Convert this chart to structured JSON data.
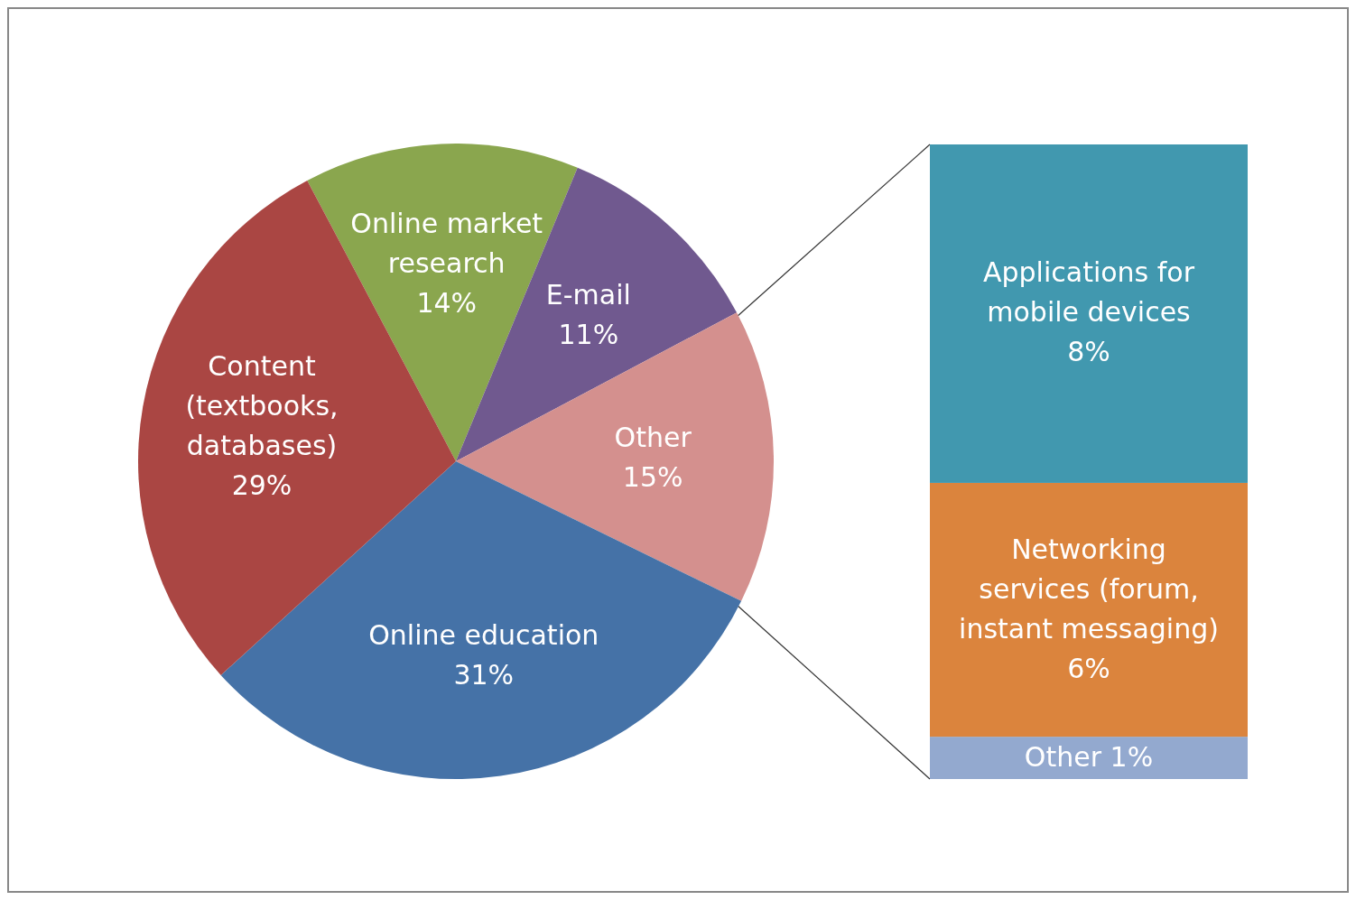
{
  "chart_data": [
    {
      "type": "pie",
      "categories": [
        "Online market research",
        "E-mail",
        "Other",
        "Online education",
        "Content (textbooks, databases)"
      ],
      "values": [
        14,
        11,
        15,
        31,
        29
      ],
      "colors": [
        "#8aa64e",
        "#70598f",
        "#d4908e",
        "#4572a7",
        "#aa4643"
      ],
      "value_labels": [
        "14%",
        "11%",
        "15%",
        "31%",
        "29%"
      ]
    },
    {
      "type": "bar",
      "stacked": true,
      "categories": [
        null
      ],
      "series": [
        {
          "name": "Other",
          "color": "#93a9cf",
          "values": [
            1
          ],
          "value_labels": [
            "1%"
          ]
        },
        {
          "name": "Networking services (forum, instant messaging)",
          "color": "#db843d",
          "values": [
            6
          ],
          "value_labels": [
            "6%"
          ]
        },
        {
          "name": "Applications for mobile devices",
          "color": "#4198af",
          "values": [
            8
          ],
          "value_labels": [
            "8%"
          ]
        }
      ]
    }
  ]
}
